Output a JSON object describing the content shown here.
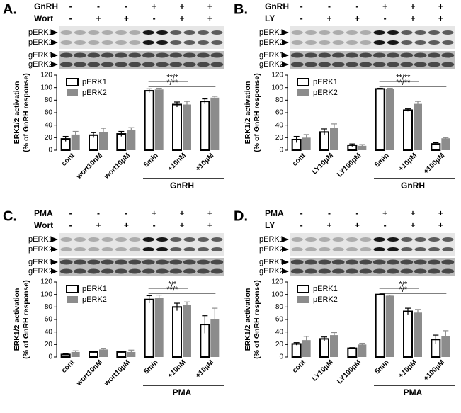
{
  "chart_data": [
    {
      "type": "bar",
      "panel": "A.",
      "treatments": [
        {
          "name": "GnRH",
          "signs": [
            "-",
            "-",
            "-",
            "+",
            "+",
            "+"
          ]
        },
        {
          "name": "Wort",
          "signs": [
            "-",
            "+",
            "+",
            "-",
            "+",
            "+"
          ]
        }
      ],
      "blot_labels": [
        "pERK1",
        "pERK2",
        "gERK1",
        "gERK2"
      ],
      "ylabel": [
        "ERK1/2 activation",
        "(% of GnRH response)"
      ],
      "categories": [
        "cont",
        "wort10nM",
        "wort10μM",
        "5min",
        "+10nM",
        "+10μM"
      ],
      "group_label": "GnRH",
      "series": [
        {
          "name": "pERK1",
          "color": "#ffffff",
          "values": [
            18,
            24,
            26,
            95,
            73,
            78
          ],
          "errors": [
            4,
            4,
            4,
            3,
            4,
            4
          ]
        },
        {
          "name": "pERK2",
          "color": "#8c8c8c",
          "values": [
            25,
            29,
            32,
            97,
            73,
            84
          ],
          "errors": [
            5,
            6,
            4,
            2,
            5,
            2
          ]
        }
      ],
      "annotations": [
        "**/*",
        "*/**"
      ],
      "ylim": [
        0,
        120
      ],
      "yticks": [
        0,
        20,
        40,
        60,
        80,
        100,
        120
      ],
      "legend": "upper-left"
    },
    {
      "type": "bar",
      "panel": "B.",
      "treatments": [
        {
          "name": "GnRH",
          "signs": [
            "-",
            "-",
            "-",
            "+",
            "+",
            "+"
          ]
        },
        {
          "name": "LY",
          "signs": [
            "-",
            "+",
            "+",
            "-",
            "+",
            "+"
          ]
        }
      ],
      "blot_labels": [
        "pERK1",
        "pERK2",
        "gERK1",
        "gERK2"
      ],
      "ylabel": [
        "ERK1/2 activation",
        "(% of GnRH response)"
      ],
      "categories": [
        "cont",
        "LY10μM",
        "LY100μM",
        "5min",
        "+10μM",
        "+100μM"
      ],
      "group_label": "GnRH",
      "series": [
        {
          "name": "pERK1",
          "color": "#ffffff",
          "values": [
            17,
            29,
            8,
            98,
            64,
            10
          ],
          "errors": [
            5,
            5,
            2,
            1,
            2,
            2
          ]
        },
        {
          "name": "pERK2",
          "color": "#8c8c8c",
          "values": [
            20,
            36,
            7,
            98,
            74,
            19
          ],
          "errors": [
            5,
            6,
            2,
            1,
            4,
            1
          ]
        }
      ],
      "annotations": [
        "**/**",
        "**/**"
      ],
      "ylim": [
        0,
        120
      ],
      "yticks": [
        0,
        20,
        40,
        60,
        80,
        100,
        120
      ],
      "legend": "upper-left"
    },
    {
      "type": "bar",
      "panel": "C.",
      "treatments": [
        {
          "name": "PMA",
          "signs": [
            "-",
            "-",
            "-",
            "+",
            "+",
            "+"
          ]
        },
        {
          "name": "Wort",
          "signs": [
            "-",
            "+",
            "+",
            "-",
            "+",
            "+"
          ]
        }
      ],
      "blot_labels": [
        "pERK1",
        "pERK2",
        "gERK1",
        "gERK2"
      ],
      "ylabel": [
        "ERK1/2 activation",
        "(% of GnRH response)"
      ],
      "categories": [
        "cont",
        "wort10nM",
        "wort10μM",
        "5min",
        "+10nM",
        "+10μM"
      ],
      "group_label": "PMA",
      "series": [
        {
          "name": "pERK1",
          "color": "#ffffff",
          "values": [
            4,
            8,
            8,
            92,
            80,
            52
          ],
          "errors": [
            1,
            1,
            1,
            6,
            6,
            14
          ]
        },
        {
          "name": "pERK2",
          "color": "#8c8c8c",
          "values": [
            8,
            12,
            8,
            95,
            83,
            60
          ],
          "errors": [
            2,
            2,
            3,
            4,
            5,
            18
          ]
        }
      ],
      "annotations": [
        "*/*",
        "**/*"
      ],
      "ylim": [
        0,
        120
      ],
      "yticks": [
        0,
        20,
        40,
        60,
        80,
        100,
        120
      ],
      "legend": "upper-left"
    },
    {
      "type": "bar",
      "panel": "D.",
      "treatments": [
        {
          "name": "PMA",
          "signs": [
            "-",
            "-",
            "-",
            "+",
            "+",
            "+"
          ]
        },
        {
          "name": "LY",
          "signs": [
            "-",
            "+",
            "+",
            "-",
            "+",
            "+"
          ]
        }
      ],
      "blot_labels": [
        "pERK1",
        "pERK2",
        "gERK1",
        "gERK2"
      ],
      "ylabel": [
        "ERK1/2 activation",
        "(% of GnRH response)"
      ],
      "categories": [
        "cont",
        "LY10μM",
        "LY100μM",
        "5min",
        "+10μM",
        "+100μM"
      ],
      "group_label": "PMA",
      "series": [
        {
          "name": "pERK1",
          "color": "#ffffff",
          "values": [
            21,
            29,
            14,
            100,
            73,
            28
          ],
          "errors": [
            2,
            3,
            1,
            0,
            5,
            7
          ]
        },
        {
          "name": "pERK2",
          "color": "#8c8c8c",
          "values": [
            27,
            35,
            20,
            98,
            71,
            33
          ],
          "errors": [
            6,
            4,
            2,
            1,
            5,
            9
          ]
        }
      ],
      "annotations": [
        "*/*",
        "*/*"
      ],
      "ylim": [
        0,
        120
      ],
      "yticks": [
        0,
        20,
        40,
        60,
        80,
        100,
        120
      ],
      "legend": "upper-left"
    }
  ]
}
